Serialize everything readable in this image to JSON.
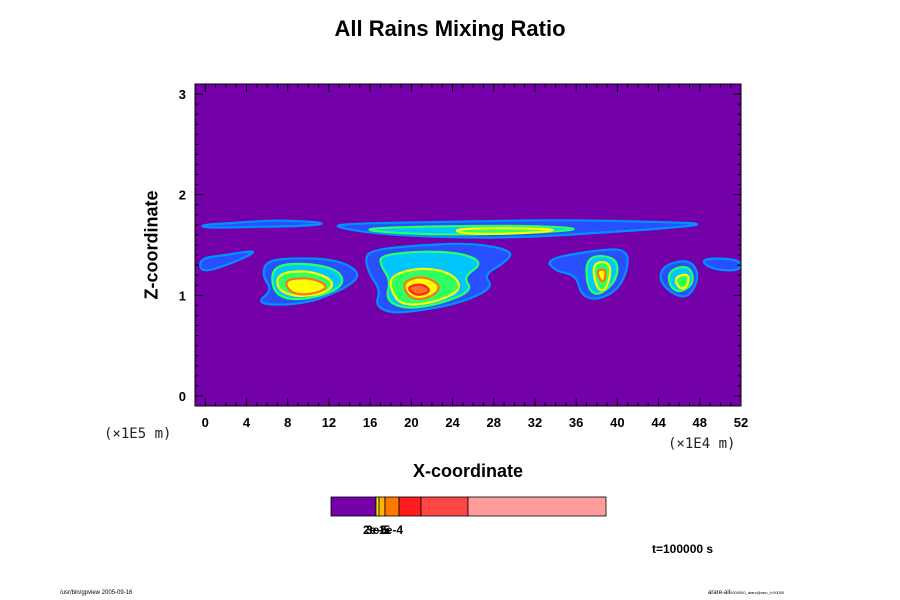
{
  "chart_data": {
    "type": "heatmap",
    "title": "All Rains Mixing Ratio",
    "xlabel": "X-coordinate",
    "ylabel": "Z-coordinate",
    "x_unit": "(×1E4 m)",
    "y_unit": "(×1E5 m)",
    "xlim": [
      -1,
      52
    ],
    "ylim": [
      -0.1,
      3.1
    ],
    "x_ticks": [
      0,
      4,
      8,
      12,
      16,
      20,
      24,
      28,
      32,
      36,
      40,
      44,
      48,
      52
    ],
    "y_ticks": [
      0,
      1,
      2,
      3
    ],
    "background_color": "#7300a8",
    "colorbar": {
      "colors": [
        "#7300a8",
        "#f0f000",
        "#ffb400",
        "#ff7800",
        "#ff1e1e",
        "#ff4646",
        "#ff9b9b"
      ],
      "bounds": [
        0,
        45,
        48,
        54,
        68,
        90,
        137,
        275
      ],
      "labels": [
        "2e-5",
        "3e-5",
        "1e-4"
      ]
    },
    "shapes": [
      {
        "level": 1,
        "points": [
          [
            -0.5,
            1.7
          ],
          [
            3,
            1.72
          ],
          [
            7,
            1.75
          ],
          [
            12,
            1.72
          ],
          [
            10,
            1.69
          ],
          [
            5,
            1.68
          ],
          [
            0,
            1.67
          ]
        ]
      },
      {
        "level": 1,
        "points": [
          [
            12,
            1.71
          ],
          [
            24,
            1.73
          ],
          [
            34,
            1.75
          ],
          [
            44,
            1.73
          ],
          [
            49,
            1.71
          ],
          [
            44,
            1.66
          ],
          [
            38,
            1.62
          ],
          [
            32,
            1.58
          ],
          [
            25,
            1.57
          ],
          [
            18,
            1.6
          ],
          [
            14,
            1.65
          ]
        ]
      },
      {
        "level": 2,
        "points": [
          [
            15,
            1.66
          ],
          [
            20,
            1.68
          ],
          [
            26,
            1.69
          ],
          [
            32,
            1.69
          ],
          [
            37,
            1.66
          ],
          [
            32,
            1.62
          ],
          [
            24,
            1.6
          ],
          [
            18,
            1.62
          ]
        ]
      },
      {
        "level": 3,
        "points": [
          [
            24,
            1.66
          ],
          [
            30,
            1.67
          ],
          [
            35,
            1.65
          ],
          [
            30,
            1.61
          ],
          [
            25,
            1.61
          ]
        ]
      },
      {
        "level": 1,
        "points": [
          [
            -0.5,
            1.37
          ],
          [
            2,
            1.4
          ],
          [
            5,
            1.45
          ],
          [
            4,
            1.38
          ],
          [
            1,
            1.26
          ],
          [
            -0.5,
            1.24
          ]
        ]
      },
      {
        "level": 1,
        "points": [
          [
            48,
            1.37
          ],
          [
            52,
            1.36
          ],
          [
            52,
            1.24
          ],
          [
            49,
            1.26
          ]
        ]
      },
      {
        "level": 1,
        "points": [
          [
            6,
            1.35
          ],
          [
            9,
            1.37
          ],
          [
            12,
            1.36
          ],
          [
            14,
            1.3
          ],
          [
            15,
            1.2
          ],
          [
            14,
            1.1
          ],
          [
            12,
            1.0
          ],
          [
            10,
            0.93
          ],
          [
            7,
            0.9
          ],
          [
            5,
            0.93
          ],
          [
            6.5,
            1.05
          ],
          [
            5.5,
            1.2
          ]
        ]
      },
      {
        "level": 2,
        "points": [
          [
            6.5,
            1.3
          ],
          [
            10,
            1.32
          ],
          [
            13,
            1.25
          ],
          [
            13.5,
            1.1
          ],
          [
            11,
            0.98
          ],
          [
            8,
            0.95
          ],
          [
            6.5,
            1.05
          ]
        ]
      },
      {
        "level": 3,
        "points": [
          [
            7,
            1.22
          ],
          [
            10,
            1.25
          ],
          [
            12.5,
            1.15
          ],
          [
            12,
            1.03
          ],
          [
            9,
            0.98
          ],
          [
            7,
            1.05
          ]
        ]
      },
      {
        "level": 4,
        "points": [
          [
            7.5,
            1.15
          ],
          [
            10,
            1.18
          ],
          [
            12,
            1.1
          ],
          [
            11,
            1.02
          ],
          [
            8.5,
            1.0
          ]
        ]
      },
      {
        "level": 1,
        "points": [
          [
            16,
            1.45
          ],
          [
            21,
            1.5
          ],
          [
            26,
            1.52
          ],
          [
            30,
            1.44
          ],
          [
            29,
            1.32
          ],
          [
            27,
            1.2
          ],
          [
            28,
            1.08
          ],
          [
            25,
            0.93
          ],
          [
            21,
            0.85
          ],
          [
            18,
            0.82
          ],
          [
            16.5,
            0.9
          ],
          [
            17,
            1.05
          ],
          [
            16,
            1.2
          ],
          [
            15.5,
            1.35
          ]
        ]
      },
      {
        "level": 2,
        "points": [
          [
            17,
            1.4
          ],
          [
            21,
            1.44
          ],
          [
            25,
            1.42
          ],
          [
            27,
            1.32
          ],
          [
            25,
            1.18
          ],
          [
            26,
            1.05
          ],
          [
            23,
            0.92
          ],
          [
            19.5,
            0.86
          ],
          [
            17.5,
            0.95
          ],
          [
            18,
            1.15
          ],
          [
            17,
            1.3
          ]
        ]
      },
      {
        "level": 3,
        "points": [
          [
            18,
            1.2
          ],
          [
            21,
            1.28
          ],
          [
            24,
            1.22
          ],
          [
            25,
            1.05
          ],
          [
            22,
            0.92
          ],
          [
            19,
            0.9
          ],
          [
            18,
            1.05
          ]
        ]
      },
      {
        "level": 4,
        "points": [
          [
            19,
            1.12
          ],
          [
            21,
            1.2
          ],
          [
            23,
            1.1
          ],
          [
            22,
            0.98
          ],
          [
            20,
            0.95
          ]
        ]
      },
      {
        "level": 5,
        "points": [
          [
            19.5,
            1.08
          ],
          [
            21,
            1.12
          ],
          [
            22,
            1.04
          ],
          [
            20.5,
            0.99
          ]
        ]
      },
      {
        "level": 1,
        "points": [
          [
            33,
            1.36
          ],
          [
            38,
            1.45
          ],
          [
            41,
            1.46
          ],
          [
            41,
            1.25
          ],
          [
            40,
            1.05
          ],
          [
            38,
            0.95
          ],
          [
            36.5,
            1.0
          ],
          [
            36,
            1.2
          ],
          [
            34,
            1.24
          ]
        ]
      },
      {
        "level": 2,
        "points": [
          [
            37,
            1.4
          ],
          [
            40,
            1.38
          ],
          [
            40,
            1.15
          ],
          [
            38,
            0.98
          ],
          [
            37,
            1.1
          ]
        ]
      },
      {
        "level": 3,
        "points": [
          [
            37.5,
            1.33
          ],
          [
            39.5,
            1.33
          ],
          [
            39,
            1.05
          ],
          [
            38,
            1.05
          ]
        ]
      },
      {
        "level": 4,
        "points": [
          [
            37.9,
            1.25
          ],
          [
            39,
            1.26
          ],
          [
            38.6,
            1.1
          ]
        ]
      },
      {
        "level": 1,
        "points": [
          [
            44.5,
            1.3
          ],
          [
            47,
            1.36
          ],
          [
            48,
            1.2
          ],
          [
            47,
            0.98
          ],
          [
            45.5,
            1.0
          ],
          [
            44,
            1.15
          ]
        ]
      },
      {
        "level": 2,
        "points": [
          [
            45,
            1.25
          ],
          [
            47,
            1.3
          ],
          [
            47.5,
            1.12
          ],
          [
            46,
            1.02
          ],
          [
            45,
            1.1
          ]
        ]
      },
      {
        "level": 3,
        "points": [
          [
            45.5,
            1.18
          ],
          [
            47,
            1.22
          ],
          [
            46.8,
            1.08
          ],
          [
            46,
            1.06
          ]
        ]
      }
    ]
  },
  "page": {
    "time_label": "t=100000 s",
    "footer_left": "/usr/bin/gpview 2005-09-16",
    "footer_right_main": "arare-all",
    "footer_right_small": "0000000_atarc@rain_t=00000"
  }
}
